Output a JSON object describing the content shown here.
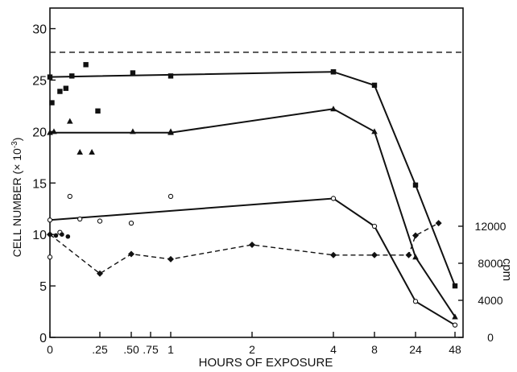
{
  "chart_data": {
    "type": "line",
    "xlabel": "HOURS OF EXPOSURE",
    "ylabel": "CELL NUMBER (× 10",
    "ylabel_exp": "-3",
    "ylabel_close": ")",
    "y2label": "cpm",
    "x_ticks": [
      {
        "label": "0",
        "x": 0
      },
      {
        "label": ".25",
        "x": 0.25
      },
      {
        "label": ".50",
        "x": 0.5
      },
      {
        "label": ".75",
        "x": 0.75
      },
      {
        "label": "1",
        "x": 1
      },
      {
        "label": "2",
        "x": 2
      },
      {
        "label": "4",
        "x": 4
      },
      {
        "label": "8",
        "x": 8
      },
      {
        "label": "24",
        "x": 24
      },
      {
        "label": "48",
        "x": 48
      }
    ],
    "ylim": [
      0,
      32
    ],
    "y_ticks": [
      "0",
      "5",
      "10",
      "15",
      "20",
      "25",
      "30"
    ],
    "y2_ticks": [
      {
        "label": "0",
        "value": 0
      },
      {
        "label": "4000",
        "value": 4000
      },
      {
        "label": "8000",
        "value": 8000
      },
      {
        "label": "12000",
        "value": 12000
      }
    ],
    "y2_scale_note": "cpm axis: 4000 cpm = 3.6 cell-number units",
    "control_level": 27.7,
    "series": [
      {
        "marker": "square",
        "line": "solid",
        "x": [
          0,
          4,
          8,
          24,
          48
        ],
        "y": [
          25.3,
          25.8,
          24.5,
          14.8,
          5.0
        ]
      },
      {
        "marker": "triangle",
        "line": "solid",
        "x": [
          0,
          1,
          4,
          8,
          24,
          48
        ],
        "y": [
          19.9,
          19.9,
          22.2,
          20.0,
          7.8,
          2.0
        ]
      },
      {
        "marker": "circle-open",
        "line": "solid",
        "x": [
          0,
          4,
          8,
          24,
          48
        ],
        "y": [
          11.4,
          13.5,
          10.8,
          3.5,
          1.2
        ]
      },
      {
        "marker": "diamond",
        "line": "dashed",
        "x": [
          0,
          0.25,
          0.5,
          1,
          2,
          4,
          8,
          20,
          24,
          36
        ],
        "y": [
          10.0,
          6.2,
          8.1,
          7.6,
          9.0,
          8.0,
          8.0,
          8.0,
          9.9,
          11.1
        ]
      }
    ],
    "scatter_points": [
      {
        "marker": "square",
        "x": [
          0.01,
          0.05,
          0.08,
          0.11,
          0.18,
          0.24,
          0.52,
          1,
          4
        ],
        "y": [
          22.8,
          23.9,
          24.2,
          25.4,
          26.5,
          22.0,
          25.7,
          25.4,
          25.8
        ]
      },
      {
        "marker": "triangle",
        "x": [
          0.02,
          0.1,
          0.15,
          0.21,
          0.52,
          1
        ],
        "y": [
          20.0,
          21.0,
          18.0,
          18.0,
          20.0,
          20.0
        ]
      },
      {
        "marker": "circle-open",
        "x": [
          0.0,
          0.05,
          0.1,
          0.15,
          0.25,
          0.5,
          1
        ],
        "y": [
          7.8,
          10.2,
          13.7,
          11.5,
          11.3,
          11.1,
          13.7
        ]
      },
      {
        "marker": "circle-filled",
        "x": [
          0.03,
          0.06,
          0.09
        ],
        "y": [
          9.9,
          10.0,
          9.8
        ]
      }
    ],
    "grid": false
  }
}
